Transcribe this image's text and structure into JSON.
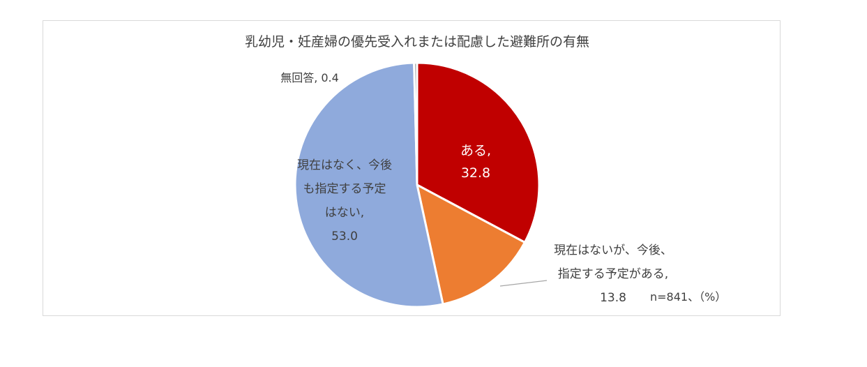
{
  "chart_data": {
    "type": "pie",
    "title": "乳幼児・妊産婦の優先受入れまたは配慮した避難所の有無",
    "note": "n=841、（%）",
    "slices": [
      {
        "name": "ある",
        "value": 32.8,
        "color": "#c00000",
        "label": "ある, 32.8"
      },
      {
        "name": "現在はないが、今後、指定する予定がある",
        "value": 13.8,
        "color": "#ed7d31",
        "label": "現在はないが、今後、\n指定する予定がある,\n13.8"
      },
      {
        "name": "現在はなく、今後も指定する予定はない",
        "value": 53.0,
        "color": "#8faadc",
        "label": "現在はなく、今後\nも指定する予定\nはない,\n53.0"
      },
      {
        "name": "無回答",
        "value": 0.4,
        "color": "#a5a5a5",
        "label": "無回答, 0.4"
      }
    ]
  }
}
